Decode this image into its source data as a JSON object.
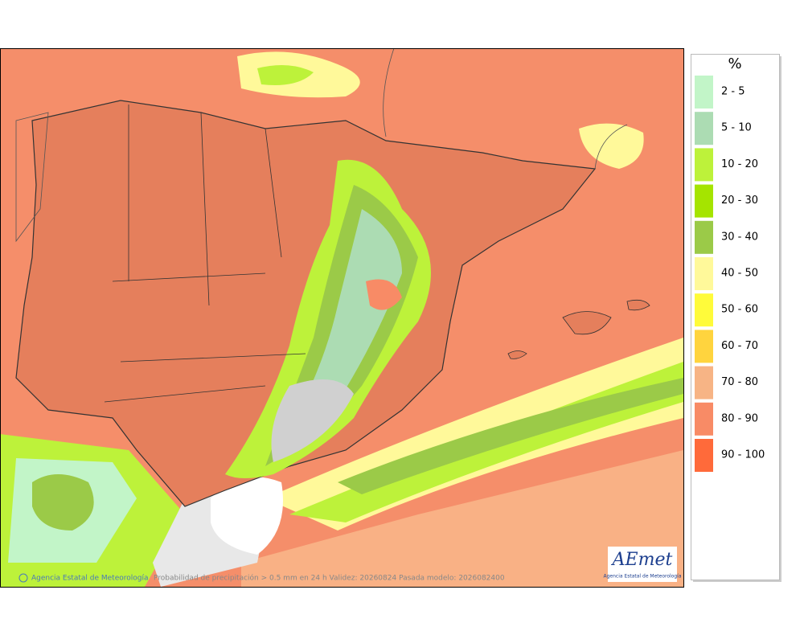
{
  "legend": {
    "title": "%",
    "items": [
      {
        "label": "2 - 5",
        "color": "#c2f5c8"
      },
      {
        "label": "5 - 10",
        "color": "#acdcb3"
      },
      {
        "label": "10 - 20",
        "color": "#bdf23a"
      },
      {
        "label": "20 - 30",
        "color": "#a5e400"
      },
      {
        "label": "30 - 40",
        "color": "#9bca48"
      },
      {
        "label": "40 - 50",
        "color": "#fff99a"
      },
      {
        "label": "50 - 60",
        "color": "#fffb3a"
      },
      {
        "label": "60 - 70",
        "color": "#ffd43e"
      },
      {
        "label": "70 - 80",
        "color": "#f7b485"
      },
      {
        "label": "80 - 90",
        "color": "#f88b66"
      },
      {
        "label": "90 - 100",
        "color": "#ff6a3a"
      }
    ]
  },
  "footer": {
    "credit": "Agencia Estatal de Meteorología",
    "caption": "Probabilidad de precipitación > 0.5 mm en 24 h Validez: 20260824 Pasada modelo: 2026082400"
  },
  "logo": {
    "text": "AEmet",
    "subtitle": "Agencia Estatal de Meteorología"
  }
}
